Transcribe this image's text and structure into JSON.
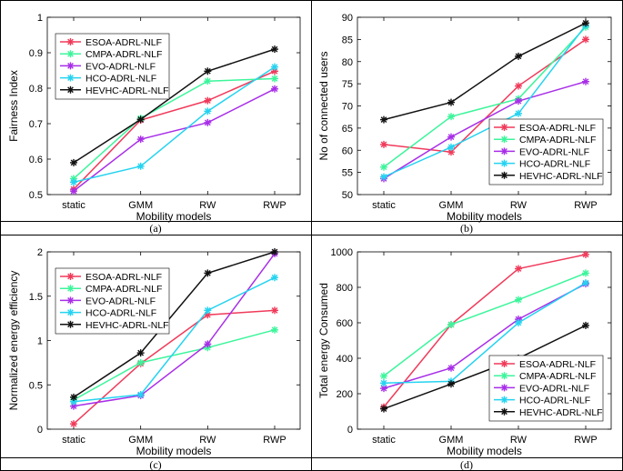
{
  "series_colors": {
    "ESOA-ADRL-NLF": "#f03a5a",
    "CMPA-ADRL-NLF": "#3cf59b",
    "EVO-ADRL-NLF": "#a82ee8",
    "HCO-ADRL-NLF": "#25d3f0",
    "HEVHC-ADRL-NLF": "#111111"
  },
  "chart_data": [
    {
      "type": "line",
      "caption": "(a)",
      "categories": [
        "static",
        "GMM",
        "RW",
        "RWP"
      ],
      "xlabel": "Mobility models",
      "ylabel": "Fairness Index",
      "ylim": [
        0.5,
        1
      ],
      "yticks": [
        "0.5",
        "0.6",
        "0.7",
        "0.8",
        "0.9",
        "1"
      ],
      "legend_position": "top-left",
      "series": [
        {
          "name": "ESOA-ADRL-NLF",
          "values": [
            0.515,
            0.71,
            0.765,
            0.848
          ]
        },
        {
          "name": "CMPA-ADRL-NLF",
          "values": [
            0.545,
            0.715,
            0.82,
            0.827
          ]
        },
        {
          "name": "EVO-ADRL-NLF",
          "values": [
            0.51,
            0.656,
            0.703,
            0.798
          ]
        },
        {
          "name": "HCO-ADRL-NLF",
          "values": [
            0.535,
            0.58,
            0.735,
            0.86
          ]
        },
        {
          "name": "HEVHC-ADRL-NLF",
          "values": [
            0.59,
            0.712,
            0.848,
            0.91
          ]
        }
      ]
    },
    {
      "type": "line",
      "caption": "(b)",
      "categories": [
        "static",
        "GMM",
        "RW",
        "RWP"
      ],
      "xlabel": "Mobility models",
      "ylabel": "No of connected users",
      "ylim": [
        50,
        90
      ],
      "yticks": [
        "50",
        "55",
        "60",
        "65",
        "70",
        "75",
        "80",
        "85",
        "90"
      ],
      "legend_position": "right",
      "series": [
        {
          "name": "ESOA-ADRL-NLF",
          "values": [
            61.3,
            59.6,
            74.5,
            85
          ]
        },
        {
          "name": "CMPA-ADRL-NLF",
          "values": [
            56.2,
            67.6,
            71.6,
            87.8
          ]
        },
        {
          "name": "EVO-ADRL-NLF",
          "values": [
            53.6,
            63,
            71.1,
            75.5
          ]
        },
        {
          "name": "HCO-ADRL-NLF",
          "values": [
            54,
            60.7,
            68.3,
            88.2
          ]
        },
        {
          "name": "HEVHC-ADRL-NLF",
          "values": [
            66.9,
            70.8,
            81.2,
            88.7
          ]
        }
      ]
    },
    {
      "type": "line",
      "caption": "(c)",
      "categories": [
        "static",
        "GMM",
        "RW",
        "RWP"
      ],
      "xlabel": "Mobility models",
      "ylabel": "Normalized energy efficiency",
      "ylim": [
        0,
        2
      ],
      "yticks": [
        "0",
        "0.5",
        "1",
        "1.5",
        "2"
      ],
      "legend_position": "top-left",
      "series": [
        {
          "name": "ESOA-ADRL-NLF",
          "values": [
            0.06,
            0.74,
            1.29,
            1.34
          ]
        },
        {
          "name": "CMPA-ADRL-NLF",
          "values": [
            0.33,
            0.75,
            0.92,
            1.12
          ]
        },
        {
          "name": "EVO-ADRL-NLF",
          "values": [
            0.26,
            0.38,
            0.96,
            1.98
          ]
        },
        {
          "name": "HCO-ADRL-NLF",
          "values": [
            0.31,
            0.39,
            1.34,
            1.71
          ]
        },
        {
          "name": "HEVHC-ADRL-NLF",
          "values": [
            0.36,
            0.86,
            1.76,
            2.0
          ]
        }
      ]
    },
    {
      "type": "line",
      "caption": "(d)",
      "categories": [
        "static",
        "GMM",
        "RW",
        "RWP"
      ],
      "xlabel": "Mobility models",
      "ylabel": "Total energy Consumed",
      "ylim": [
        0,
        1000
      ],
      "yticks": [
        "0",
        "200",
        "400",
        "600",
        "800",
        "1000"
      ],
      "legend_position": "bottom-right",
      "series": [
        {
          "name": "ESOA-ADRL-NLF",
          "values": [
            125,
            590,
            905,
            985
          ]
        },
        {
          "name": "CMPA-ADRL-NLF",
          "values": [
            300,
            590,
            730,
            880
          ]
        },
        {
          "name": "EVO-ADRL-NLF",
          "values": [
            230,
            345,
            620,
            820
          ]
        },
        {
          "name": "HCO-ADRL-NLF",
          "values": [
            260,
            270,
            600,
            825
          ]
        },
        {
          "name": "HEVHC-ADRL-NLF",
          "values": [
            115,
            255,
            400,
            585
          ]
        }
      ]
    }
  ]
}
